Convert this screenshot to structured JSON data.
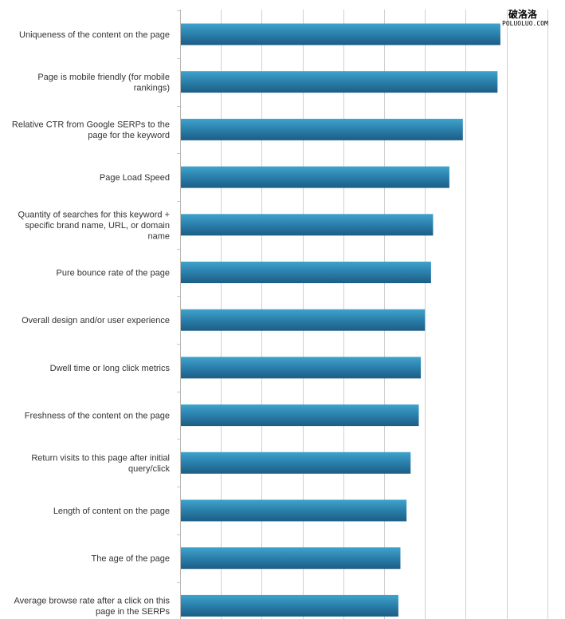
{
  "watermark": {
    "line1": "破洛洛",
    "line2": "POLUOLUO.COM"
  },
  "chart_data": {
    "type": "bar",
    "orientation": "horizontal",
    "categories": [
      [
        "Uniqueness of the content on the page"
      ],
      [
        "Page is mobile friendly (for mobile",
        "rankings)"
      ],
      [
        "Relative CTR from Google SERPs to the",
        "page for the keyword"
      ],
      [
        "Page Load Speed"
      ],
      [
        "Quantity of searches for this keyword +",
        "specific brand name, URL, or domain",
        "name"
      ],
      [
        "Pure bounce rate of the page"
      ],
      [
        "Overall design and/or user experience"
      ],
      [
        "Dwell time or long click metrics"
      ],
      [
        "Freshness of the content on the page"
      ],
      [
        "Return visits to this page after initial",
        "query/click"
      ],
      [
        "Length of content on the page"
      ],
      [
        "The age of the page"
      ],
      [
        "Average browse rate after a click on this",
        "page in the SERPs"
      ]
    ],
    "values": [
      7.85,
      7.78,
      6.93,
      6.6,
      6.2,
      6.15,
      6.0,
      5.9,
      5.85,
      5.65,
      5.55,
      5.4,
      5.35
    ],
    "xlim": [
      0,
      9
    ],
    "grid": true,
    "bar_color_top": "#3a9cc4",
    "bar_color_bottom": "#1d5f86",
    "grid_color": "#d0d0d0"
  }
}
